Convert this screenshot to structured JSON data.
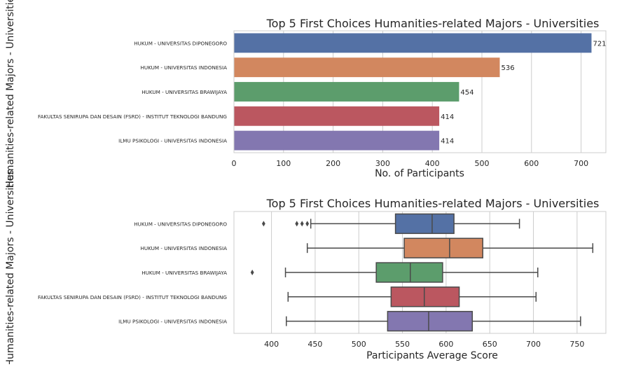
{
  "chart_data": [
    {
      "type": "bar",
      "orientation": "horizontal",
      "title": "Top 5 First Choices Humanities-related Majors - Universities",
      "xlabel": "No. of Participants",
      "ylabel": "Humanities-related Majors - Universities",
      "xlim": [
        0,
        750
      ],
      "xticks": [
        "0",
        "100",
        "200",
        "300",
        "400",
        "500",
        "600",
        "700"
      ],
      "grid": "vertical",
      "categories": [
        "HUKUM - UNIVERSITAS DIPONEGORO",
        "HUKUM - UNIVERSITAS INDONESIA",
        "HUKUM - UNIVERSITAS BRAWIJAYA",
        "FAKULTAS SENIRUPA DAN DESAIN (FSRD) - INSTITUT TEKNOLOGI BANDUNG",
        "ILMU PSIKOLOGI - UNIVERSITAS INDONESIA"
      ],
      "values": [
        721,
        536,
        454,
        414,
        414
      ],
      "value_labels": [
        "721",
        "536",
        "454",
        "414",
        "414"
      ],
      "colors": [
        "#5471a5",
        "#d2875f",
        "#5c9d6c",
        "#bb5760",
        "#8377b0"
      ]
    },
    {
      "type": "box",
      "orientation": "horizontal",
      "title": "Top 5 First Choices Humanities-related Majors - Universities",
      "xlabel": "Participants Average Score",
      "ylabel": "Humanities-related Majors - Universities",
      "xlim": [
        357,
        783
      ],
      "xticks": [
        "400",
        "450",
        "500",
        "550",
        "600",
        "650",
        "700",
        "750"
      ],
      "grid": "vertical",
      "categories": [
        "HUKUM - UNIVERSITAS DIPONEGORO",
        "HUKUM - UNIVERSITAS INDONESIA",
        "HUKUM - UNIVERSITAS BRAWIJAYA",
        "FAKULTAS SENIRUPA DAN DESAIN (FSRD) - INSTITUT TEKNOLOGI BANDUNG",
        "ILMU PSIKOLOGI - UNIVERSITAS INDONESIA"
      ],
      "boxes": [
        {
          "whisker_low": 445,
          "q1": 542,
          "median": 584,
          "q3": 609,
          "whisker_high": 684,
          "outliers": [
            391,
            429,
            435,
            441
          ]
        },
        {
          "whisker_low": 441,
          "q1": 552,
          "median": 604,
          "q3": 642,
          "whisker_high": 768,
          "outliers": []
        },
        {
          "whisker_low": 416,
          "q1": 520,
          "median": 559,
          "q3": 596,
          "whisker_high": 705,
          "outliers": [
            378
          ]
        },
        {
          "whisker_low": 419,
          "q1": 537,
          "median": 575,
          "q3": 615,
          "whisker_high": 703,
          "outliers": []
        },
        {
          "whisker_low": 417,
          "q1": 533,
          "median": 580,
          "q3": 630,
          "whisker_high": 754,
          "outliers": []
        }
      ],
      "colors": [
        "#5471a5",
        "#d2875f",
        "#5c9d6c",
        "#bb5760",
        "#8377b0"
      ]
    }
  ]
}
